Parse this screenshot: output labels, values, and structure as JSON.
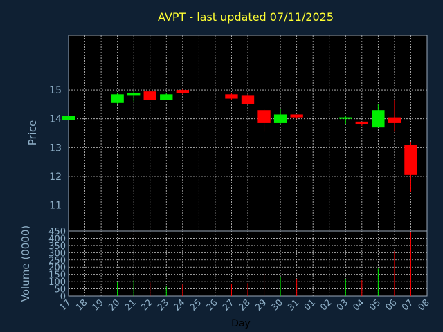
{
  "chart_data": {
    "type": "candlestick",
    "title": "AVPT - last updated 07/11/2025",
    "price_ylabel": "Price",
    "volume_ylabel": "Volume (0000)",
    "xlabel": "Day",
    "price_yticks": [
      11,
      12,
      13,
      14,
      15
    ],
    "price_ylim": [
      10.1,
      16.9
    ],
    "volume_yticks": [
      0,
      50,
      100,
      150,
      200,
      250,
      300,
      350,
      400,
      450
    ],
    "volume_ylim": [
      0,
      450
    ],
    "x_tick_labels": [
      "17",
      "18",
      "19",
      "20",
      "21",
      "22",
      "23",
      "24",
      "25",
      "26",
      "27",
      "28",
      "29",
      "30",
      "31",
      "01",
      "02",
      "03",
      "04",
      "05",
      "06",
      "07",
      "08"
    ],
    "candles": [
      {
        "day": "17",
        "open": 13.95,
        "close": 14.1,
        "high": 14.1,
        "low": 13.95,
        "volume": 0
      },
      {
        "day": "20",
        "open": 14.55,
        "close": 14.85,
        "high": 14.9,
        "low": 14.5,
        "volume": 100
      },
      {
        "day": "21",
        "open": 14.8,
        "close": 14.9,
        "high": 14.95,
        "low": 14.6,
        "volume": 110
      },
      {
        "day": "22",
        "open": 14.95,
        "close": 14.65,
        "high": 14.98,
        "low": 14.65,
        "volume": 95
      },
      {
        "day": "23",
        "open": 14.65,
        "close": 14.85,
        "high": 14.9,
        "low": 14.65,
        "volume": 65
      },
      {
        "day": "24",
        "open": 15.0,
        "close": 14.9,
        "high": 15.03,
        "low": 14.85,
        "volume": 80
      },
      {
        "day": "27",
        "open": 14.85,
        "close": 14.7,
        "high": 14.9,
        "low": 14.65,
        "volume": 85
      },
      {
        "day": "28",
        "open": 14.8,
        "close": 14.5,
        "high": 14.85,
        "low": 14.5,
        "volume": 90
      },
      {
        "day": "29",
        "open": 14.3,
        "close": 13.85,
        "high": 14.35,
        "low": 13.55,
        "volume": 155
      },
      {
        "day": "30",
        "open": 13.85,
        "close": 14.15,
        "high": 14.35,
        "low": 13.8,
        "volume": 130
      },
      {
        "day": "31",
        "open": 14.15,
        "close": 14.05,
        "high": 14.15,
        "low": 14.0,
        "volume": 120
      },
      {
        "day": "03",
        "open": 14.0,
        "close": 14.05,
        "high": 14.1,
        "low": 13.8,
        "volume": 120
      },
      {
        "day": "04",
        "open": 13.9,
        "close": 13.8,
        "high": 13.9,
        "low": 13.75,
        "volume": 110
      },
      {
        "day": "05",
        "open": 13.7,
        "close": 14.3,
        "high": 14.5,
        "low": 13.7,
        "volume": 190
      },
      {
        "day": "06",
        "open": 14.05,
        "close": 13.85,
        "high": 14.65,
        "low": 13.55,
        "volume": 310
      },
      {
        "day": "07",
        "open": 13.1,
        "close": 12.05,
        "high": 13.2,
        "low": 11.45,
        "volume": 440
      }
    ]
  }
}
